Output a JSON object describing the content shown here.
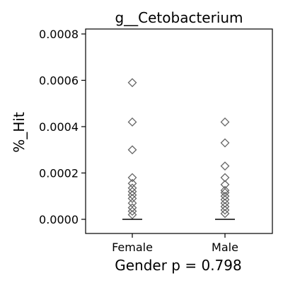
{
  "chart_data": {
    "type": "scatter",
    "title": "g__Cetobacterium",
    "ylabel": "%_Hit",
    "xlabel": "Gender p = 0.798",
    "categories": [
      "Female",
      "Male"
    ],
    "ylim": [
      -6e-05,
      0.00083
    ],
    "yticks": [
      0.0,
      0.0002,
      0.0004,
      0.0006,
      0.0008
    ],
    "ytick_labels": [
      "0.0000",
      "0.0002",
      "0.0004",
      "0.0006",
      "0.0008"
    ],
    "grid": false,
    "series": [
      {
        "category": "Female",
        "values": [
          0.00059,
          0.00042,
          0.0003,
          0.00018,
          0.000155,
          0.000135,
          0.00012,
          0.000105,
          9e-05,
          7e-05,
          5e-05,
          3.5e-05,
          2e-05
        ],
        "median": 0.0
      },
      {
        "category": "Male",
        "values": [
          0.00042,
          0.00033,
          0.00023,
          0.00018,
          0.00015,
          0.000125,
          0.000115,
          0.0001,
          8.5e-05,
          7e-05,
          5.5e-05,
          4e-05,
          2.5e-05
        ],
        "median": 0.0
      }
    ],
    "marker": "diamond-open",
    "marker_color": "#666666"
  }
}
